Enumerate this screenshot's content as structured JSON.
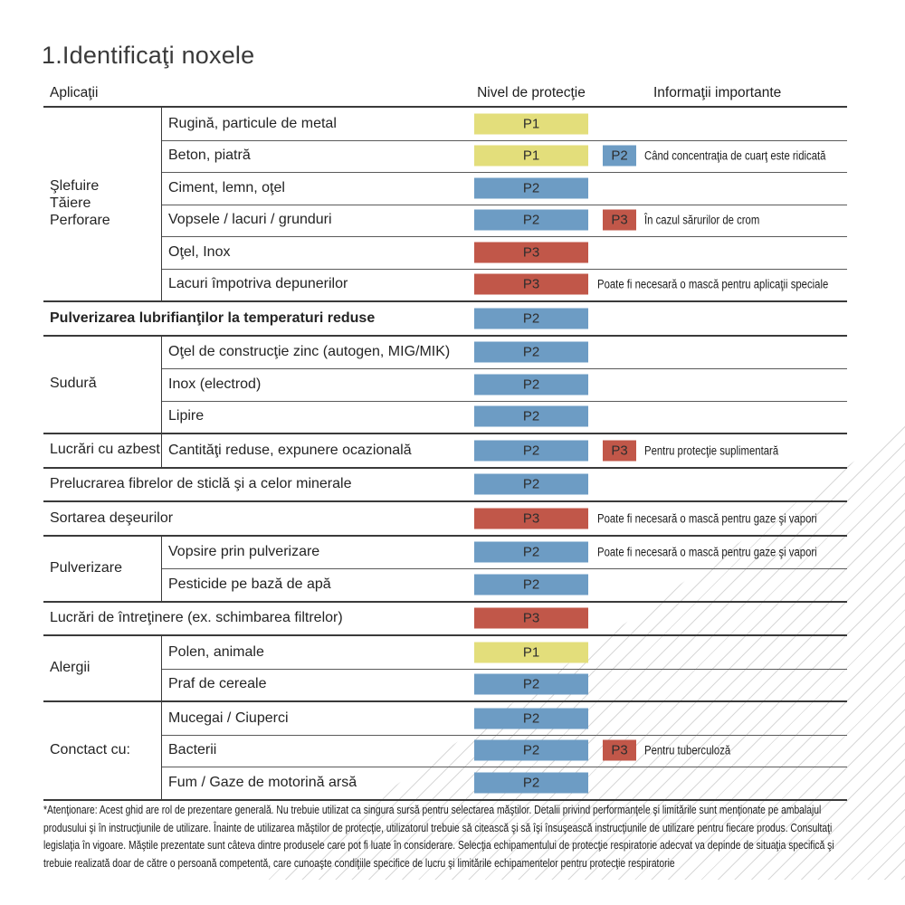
{
  "title": "1.Identificaţi noxele",
  "columns": {
    "applications": "Aplicaţii",
    "protection": "Nivel de protecţie",
    "info": "Informaţii importante"
  },
  "level_colors": {
    "P1": "#e3de7b",
    "P2": "#6d9cc4",
    "P3": "#c15749"
  },
  "groups": [
    {
      "category": "Şlefuire\nTăiere\nPerforare",
      "rows": [
        {
          "label": "Rugină, particule de metal",
          "level": "P1"
        },
        {
          "label": "Beton, piatră",
          "level": "P1",
          "level2": "P2",
          "info": "Când concentraţia de cuarţ este ridicată"
        },
        {
          "label": "Ciment, lemn, oţel",
          "level": "P2"
        },
        {
          "label": "Vopsele / lacuri / grunduri",
          "level": "P2",
          "level2": "P3",
          "info": "În cazul sărurilor de crom"
        },
        {
          "label": "Oţel, Inox",
          "level": "P3"
        },
        {
          "label": "Lacuri împotriva depunerilor",
          "level": "P3",
          "info": "Poate fi necesară o mască pentru aplicaţii speciale"
        }
      ]
    },
    {
      "category": "",
      "rows": [
        {
          "label": "Pulverizarea lubrifianţilor la temperaturi reduse",
          "level": "P2",
          "bold": true
        }
      ]
    },
    {
      "category": "Sudură",
      "rows": [
        {
          "label": "Oţel de construcţie zinc (autogen, MIG/MIK)",
          "level": "P2"
        },
        {
          "label": "Inox (electrod)",
          "level": "P2"
        },
        {
          "label": "Lipire",
          "level": "P2"
        }
      ]
    },
    {
      "category": "Lucrări cu azbest",
      "rows": [
        {
          "label": "Cantităţi reduse, expunere ocazională",
          "level": "P2",
          "level2": "P3",
          "info": "Pentru protecţie suplimentară"
        }
      ]
    },
    {
      "category": "",
      "rows": [
        {
          "label": "Prelucrarea fibrelor de sticlă şi a celor minerale",
          "level": "P2"
        }
      ]
    },
    {
      "category": "",
      "rows": [
        {
          "label": "Sortarea deşeurilor",
          "level": "P3",
          "info": "Poate fi necesară o mască pentru gaze şi vapori"
        }
      ]
    },
    {
      "category": "Pulverizare",
      "rows": [
        {
          "label": "Vopsire prin pulverizare",
          "level": "P2",
          "info": "Poate fi necesară o mască pentru gaze şi vapori"
        },
        {
          "label": "Pesticide pe bază de apă",
          "level": "P2"
        }
      ]
    },
    {
      "category": "",
      "rows": [
        {
          "label": "Lucrări de întreţinere (ex. schimbarea filtrelor)",
          "level": "P3"
        }
      ]
    },
    {
      "category": "Alergii",
      "rows": [
        {
          "label": "Polen, animale",
          "level": "P1"
        },
        {
          "label": "Praf de cereale",
          "level": "P2"
        }
      ]
    },
    {
      "category": "Conctact cu:",
      "rows": [
        {
          "label": "Mucegai / Ciuperci",
          "level": "P2"
        },
        {
          "label": "Bacterii",
          "level": "P2",
          "level2": "P3",
          "info": "Pentru tuberculoză"
        },
        {
          "label": "Fum / Gaze de motorină arsă",
          "level": "P2"
        }
      ]
    }
  ],
  "footnote": "*Atenţionare: Acest ghid are rol de prezentare generală. Nu trebuie utilizat ca singura sursă pentru selectarea măştilor. Detalii privind performanţele şi limitările sunt menţionate pe ambalajul produsului şi în instrucţiunile de utilizare. Înainte de utilizarea măştilor de protecţie, utilizatorul trebuie să citească şi să îşi însuşească instrucţiunile de utilizare pentru fiecare produs. Consultaţi legislaţia în vigoare. Măştile prezentate sunt câteva dintre produsele care pot fi luate în considerare. Selecţia echipamentului de protecţie respiratorie adecvat va depinde de situaţia specifică şi trebuie realizată doar de către o persoană competentă, care cunoaşte condiţiile specifice de lucru şi limitările echipamentelor pentru protecţie respiratorie"
}
